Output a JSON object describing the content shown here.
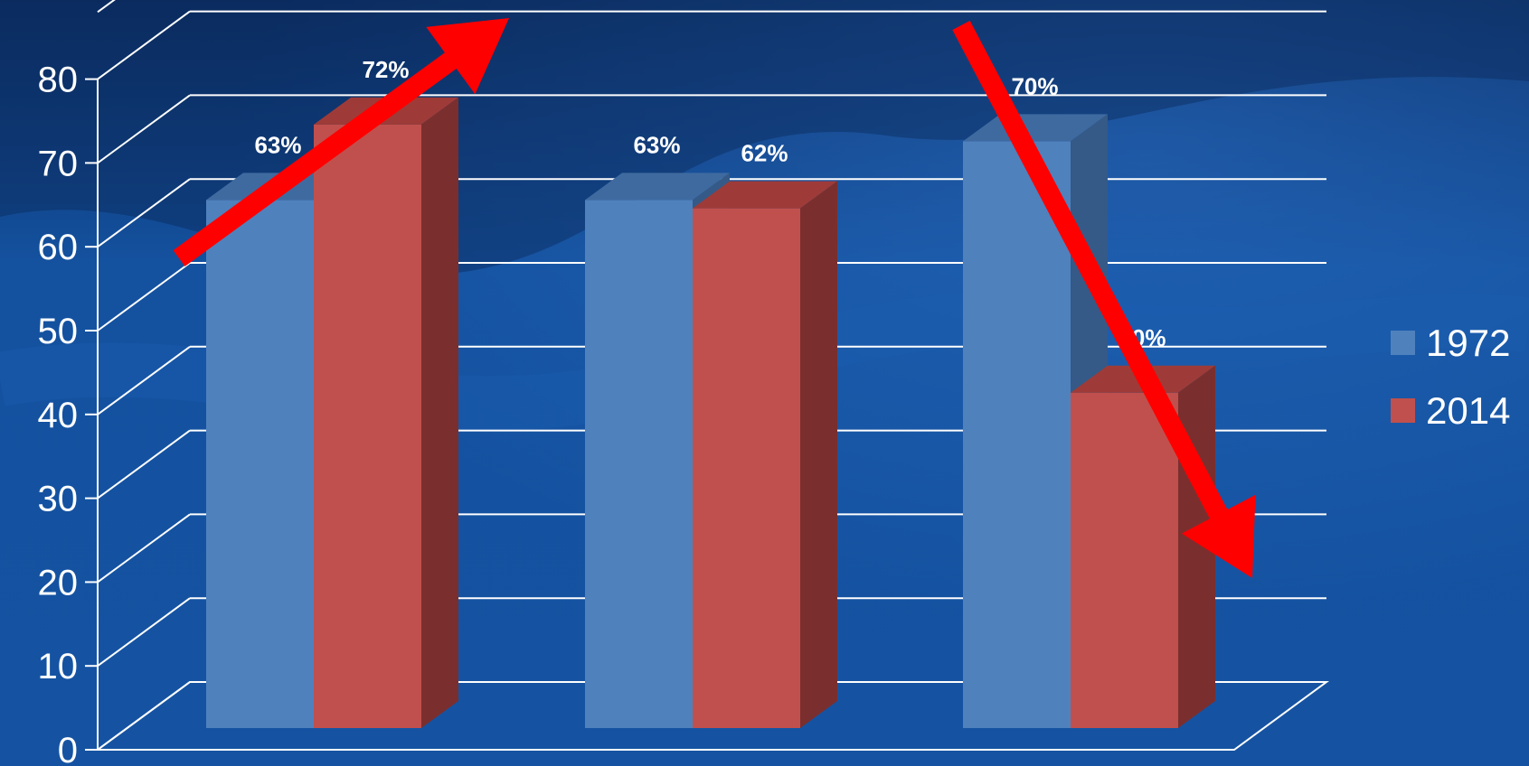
{
  "chart_data": {
    "type": "bar",
    "categories": [
      "",
      "",
      ""
    ],
    "series": [
      {
        "name": "1972",
        "values": [
          63,
          63,
          70
        ]
      },
      {
        "name": "2014",
        "values": [
          72,
          62,
          40
        ]
      }
    ],
    "data_labels": [
      [
        "63%",
        "63%",
        "70%"
      ],
      [
        "72%",
        "62%",
        "40%"
      ]
    ],
    "y_ticks": [
      "0",
      "10",
      "20",
      "30",
      "40",
      "50",
      "60",
      "70",
      "80"
    ],
    "ylim": [
      0,
      88
    ],
    "legend_position": "right",
    "grid": true,
    "style": "3d-clustered-column",
    "annotations": [
      {
        "type": "arrow",
        "direction": "up",
        "color": "#ff0000",
        "category_index": 0
      },
      {
        "type": "arrow",
        "direction": "down",
        "color": "#ff0000",
        "category_index": 2
      }
    ],
    "title": "",
    "xlabel": "",
    "ylabel": ""
  },
  "colors": {
    "background_dark": "#0b2d63",
    "background_mid": "#1452a0",
    "series_1972": "#4f81bd",
    "series_1972_top": "#3f6aa0",
    "series_1972_side": "#355a87",
    "series_2014": "#c0504d",
    "series_2014_top": "#9e3b38",
    "series_2014_side": "#7a2f2e",
    "gridline": "#ffffff",
    "arrow": "#ff0000"
  }
}
